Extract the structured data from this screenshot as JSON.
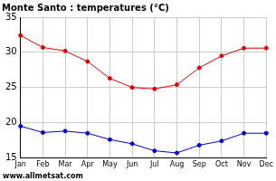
{
  "chart_data": {
    "type": "line",
    "title": "Monte Santo : temperatures (°C)",
    "categories": [
      "Jan",
      "Feb",
      "Mar",
      "Apr",
      "May",
      "Jun",
      "Jul",
      "Aug",
      "Sep",
      "Oct",
      "Nov",
      "Dec"
    ],
    "series": [
      {
        "color": "#dd0000",
        "marker": "circle",
        "line_style": "solid",
        "values": [
          32.4,
          30.7,
          30.2,
          28.7,
          26.3,
          25.0,
          24.8,
          25.4,
          27.8,
          29.5,
          30.6,
          30.6
        ]
      },
      {
        "color": "#0000cc",
        "marker": "circle",
        "line_style": "solid",
        "values": [
          19.5,
          18.6,
          18.8,
          18.5,
          17.6,
          17.0,
          16.0,
          15.7,
          16.8,
          17.4,
          18.5,
          18.5
        ]
      }
    ],
    "ylim": [
      15,
      35
    ],
    "yticks": [
      15,
      20,
      25,
      30,
      35
    ],
    "grid": true,
    "annotation": "www.allmetsat.com"
  }
}
